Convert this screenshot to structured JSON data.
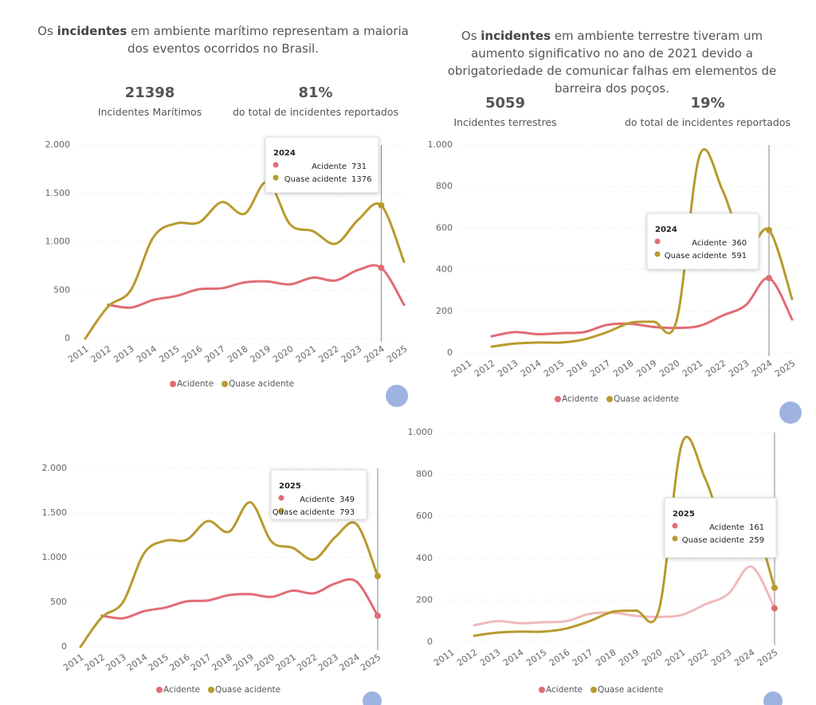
{
  "panels": [
    {
      "header": {
        "prefix": "Os ",
        "bold": "incidentes",
        "rest": " em ambiente marítimo representam a maioria dos eventos ocorridos no Brasil."
      },
      "kpis": [
        {
          "value": "21398",
          "label": "Incidentes Marítimos"
        },
        {
          "value": "81%",
          "label": "do total de incidentes reportados"
        }
      ]
    },
    {
      "header": {
        "prefix": "Os ",
        "bold": "incidentes",
        "rest": " em ambiente terrestre tiveram um aumento significativo no ano de 2021 devido a obrigatoriedade de comunicar falhas em elementos de barreira dos poços."
      },
      "kpis": [
        {
          "value": "5059",
          "label": "Incidentes terrestres"
        },
        {
          "value": "19%",
          "label": "do total de incidentes reportados"
        }
      ]
    }
  ],
  "chart_data": [
    {
      "type": "line",
      "categories": [
        "2011",
        "2012",
        "2013",
        "2014",
        "2015",
        "2016",
        "2017",
        "2018",
        "2019",
        "2020",
        "2021",
        "2022",
        "2023",
        "2024",
        "2025"
      ],
      "series": [
        {
          "name": "Acidente",
          "color": "#e06c75",
          "values": [
            null,
            350,
            320,
            400,
            440,
            510,
            520,
            580,
            590,
            560,
            630,
            600,
            710,
            731,
            349
          ]
        },
        {
          "name": "Quase acidente",
          "color": "#b89a2e",
          "values": [
            0,
            330,
            500,
            1050,
            1190,
            1200,
            1410,
            1290,
            1620,
            1180,
            1110,
            980,
            1230,
            1376,
            793
          ]
        }
      ],
      "ylim": [
        0,
        2000
      ],
      "yticks": [
        0,
        500,
        {
          "value": 1000,
          "label": "1.000"
        },
        {
          "value": 1500,
          "label": "1.500"
        },
        {
          "value": 2000,
          "label": "2.000"
        }
      ],
      "grid": true,
      "tooltip": "2024"
    },
    {
      "type": "line",
      "categories": [
        "2011",
        "2012",
        "2013",
        "2014",
        "2015",
        "2016",
        "2017",
        "2018",
        "2019",
        "2020",
        "2021",
        "2022",
        "2023",
        "2024",
        "2025"
      ],
      "series": [
        {
          "name": "Acidente",
          "color": "#e06c75",
          "values": [
            null,
            80,
            100,
            90,
            95,
            100,
            135,
            140,
            125,
            120,
            130,
            180,
            230,
            360,
            161
          ]
        },
        {
          "name": "Quase acidente",
          "color": "#b89a2e",
          "values": [
            null,
            30,
            45,
            50,
            50,
            65,
            100,
            145,
            150,
            155,
            950,
            780,
            500,
            591,
            259
          ]
        }
      ],
      "ylim": [
        0,
        1000
      ],
      "yticks": [
        0,
        200,
        400,
        600,
        800,
        {
          "value": 1000,
          "label": "1.000"
        }
      ],
      "grid": true,
      "tooltip": "2024"
    },
    {
      "type": "line",
      "categories": [
        "2011",
        "2012",
        "2013",
        "2014",
        "2015",
        "2016",
        "2017",
        "2018",
        "2019",
        "2020",
        "2021",
        "2022",
        "2023",
        "2024",
        "2025"
      ],
      "series": [
        {
          "name": "Acidente",
          "color": "#e06c75",
          "values": [
            null,
            350,
            320,
            400,
            440,
            510,
            520,
            580,
            590,
            560,
            630,
            600,
            710,
            731,
            349
          ]
        },
        {
          "name": "Quase acidente",
          "color": "#b89a2e",
          "values": [
            0,
            330,
            500,
            1050,
            1190,
            1200,
            1410,
            1290,
            1620,
            1180,
            1110,
            980,
            1230,
            1376,
            793
          ]
        }
      ],
      "ylim": [
        0,
        2000
      ],
      "yticks": [
        0,
        500,
        {
          "value": 1000,
          "label": "1.000"
        },
        {
          "value": 1500,
          "label": "1.500"
        },
        {
          "value": 2000,
          "label": "2.000"
        }
      ],
      "grid": true,
      "tooltip": "2025"
    },
    {
      "type": "line",
      "categories": [
        "2011",
        "2012",
        "2013",
        "2014",
        "2015",
        "2016",
        "2017",
        "2018",
        "2019",
        "2020",
        "2021",
        "2022",
        "2023",
        "2024",
        "2025"
      ],
      "series": [
        {
          "name": "Acidente",
          "color": "#f0b9bc",
          "values": [
            null,
            80,
            100,
            90,
            95,
            100,
            135,
            140,
            125,
            120,
            130,
            180,
            230,
            360,
            161
          ]
        },
        {
          "name": "Quase acidente",
          "color": "#b89a2e",
          "values": [
            null,
            30,
            45,
            50,
            50,
            65,
            100,
            145,
            150,
            155,
            950,
            780,
            500,
            591,
            259
          ]
        }
      ],
      "ylim": [
        0,
        1000
      ],
      "yticks": [
        0,
        200,
        400,
        600,
        800,
        {
          "value": 1000,
          "label": "1.000"
        }
      ],
      "grid": true,
      "tooltip": "2025"
    }
  ]
}
